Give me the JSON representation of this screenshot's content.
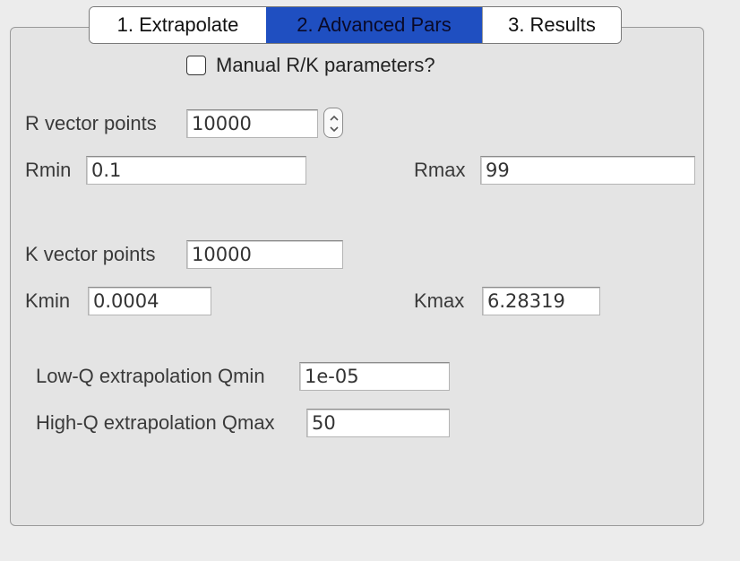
{
  "tabs": [
    {
      "label": "1. Extrapolate"
    },
    {
      "label": "2. Advanced Pars"
    },
    {
      "label": "3. Results"
    }
  ],
  "manual": {
    "label": "Manual R/K parameters?",
    "checked": false
  },
  "r_vector": {
    "label": "R vector points",
    "value": "10000"
  },
  "rmin": {
    "label": "Rmin",
    "value": "0.1"
  },
  "rmax": {
    "label": "Rmax",
    "value": "99"
  },
  "k_vector": {
    "label": "K vector points",
    "value": "10000"
  },
  "kmin": {
    "label": "Kmin",
    "value": "0.0004"
  },
  "kmax": {
    "label": "Kmax",
    "value": "6.28319"
  },
  "lowq": {
    "label": "Low-Q extrapolation Qmin",
    "value": "1e-05"
  },
  "highq": {
    "label": "High-Q extrapolation Qmax",
    "value": "50"
  }
}
